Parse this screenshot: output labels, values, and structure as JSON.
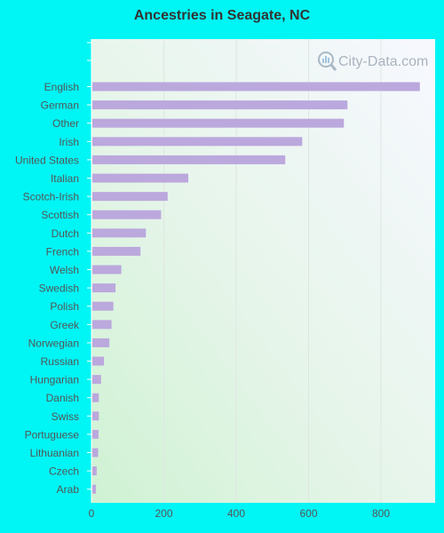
{
  "chart_data": {
    "type": "bar",
    "orientation": "horizontal",
    "title": "Ancestries in Seagate, NC",
    "categories": [
      "English",
      "German",
      "Other",
      "Irish",
      "United States",
      "Italian",
      "Scotch-Irish",
      "Scottish",
      "Dutch",
      "French",
      "Welsh",
      "Swedish",
      "Polish",
      "Greek",
      "Norwegian",
      "Russian",
      "Hungarian",
      "Danish",
      "Swiss",
      "Portuguese",
      "Lithuanian",
      "Czech",
      "Arab"
    ],
    "values": [
      905,
      705,
      695,
      580,
      533,
      265,
      208,
      190,
      148,
      133,
      80,
      64,
      58,
      53,
      47,
      32,
      24,
      18,
      18,
      17,
      16,
      12,
      10
    ],
    "xlim": [
      0,
      950
    ],
    "xticks": [
      0,
      200,
      400,
      600,
      800
    ],
    "grid": true,
    "bar_color": "#bba8dd"
  },
  "watermark": "City-Data.com"
}
